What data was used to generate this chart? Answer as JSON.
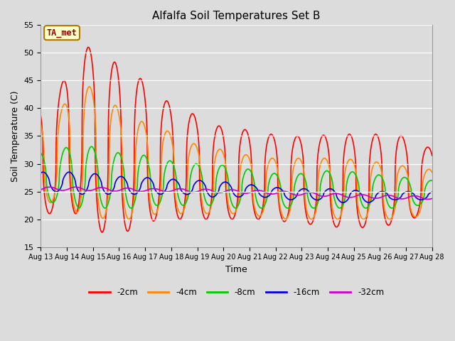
{
  "title": "Alfalfa Soil Temperatures Set B",
  "xlabel": "Time",
  "ylabel": "Soil Temperature (C)",
  "ylim": [
    15,
    55
  ],
  "xlim": [
    0,
    360
  ],
  "background_color": "#dcdcdc",
  "plot_bg_color": "#dcdcdc",
  "annotation_text": "TA_met",
  "annotation_bg": "#ffffcc",
  "annotation_border": "#aa7700",
  "annotation_text_color": "#990000",
  "series": [
    {
      "label": "-2cm",
      "color": "#ff0000",
      "linewidth": 1.2
    },
    {
      "label": "-4cm",
      "color": "#ff8800",
      "linewidth": 1.2
    },
    {
      "label": "-8cm",
      "color": "#00cc00",
      "linewidth": 1.2
    },
    {
      "label": "-16cm",
      "color": "#0000dd",
      "linewidth": 1.2
    },
    {
      "label": "-32cm",
      "color": "#cc00cc",
      "linewidth": 1.2
    }
  ],
  "tick_labels": [
    "Aug 13",
    "Aug 14",
    "Aug 15",
    "Aug 16",
    "Aug 17",
    "Aug 18",
    "Aug 19",
    "Aug 20",
    "Aug 21",
    "Aug 22",
    "Aug 23",
    "Aug 24",
    "Aug 25",
    "Aug 26",
    "Aug 27",
    "Aug 28"
  ],
  "yticks": [
    15,
    20,
    25,
    30,
    35,
    40,
    45,
    50,
    55
  ]
}
